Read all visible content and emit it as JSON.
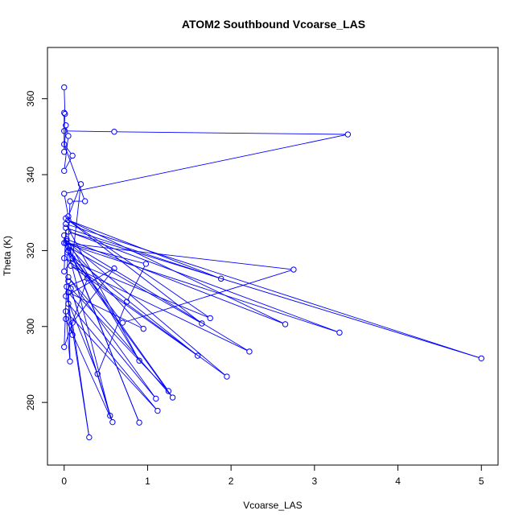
{
  "chart_data": {
    "type": "line",
    "title": "ATOM2 Southbound Vcoarse_LAS",
    "xlabel": "Vcoarse_LAS",
    "ylabel": "Theta (K)",
    "xlim": [
      -0.2,
      5.2
    ],
    "ylim": [
      263.5,
      373.5
    ],
    "xticks": [
      0,
      1,
      2,
      3,
      4,
      5
    ],
    "yticks": [
      280,
      300,
      320,
      340,
      360
    ],
    "grid": false,
    "series": [
      {
        "color": "#0000ff",
        "points": [
          [
            0.0,
            363.0
          ],
          [
            0.01,
            356.0
          ],
          [
            0.0,
            351.5
          ],
          [
            0.6,
            351.3
          ],
          [
            3.4,
            350.6
          ],
          [
            0.0,
            335.0
          ],
          [
            0.05,
            329.0
          ],
          [
            0.2,
            337.5
          ],
          [
            0.1,
            318.0
          ],
          [
            0.0,
            314.5
          ],
          [
            0.02,
            326.0
          ],
          [
            1.88,
            312.6
          ],
          [
            0.05,
            328.0
          ],
          [
            2.65,
            300.6
          ],
          [
            0.03,
            323.0
          ],
          [
            0.9,
            291.0
          ],
          [
            0.02,
            327.0
          ],
          [
            5.0,
            291.6
          ],
          [
            0.05,
            325.0
          ],
          [
            3.3,
            298.4
          ],
          [
            0.0,
            322.0
          ],
          [
            2.75,
            315.0
          ],
          [
            0.7,
            301.0
          ],
          [
            0.05,
            320.0
          ],
          [
            1.25,
            283.0
          ],
          [
            0.08,
            310.0
          ],
          [
            0.55,
            276.5
          ],
          [
            0.0,
            324.0
          ],
          [
            0.9,
            274.7
          ],
          [
            0.05,
            321.0
          ],
          [
            1.65,
            300.8
          ],
          [
            0.02,
            328.5
          ],
          [
            1.75,
            302.2
          ],
          [
            0.0,
            318.0
          ],
          [
            1.95,
            286.8
          ],
          [
            0.03,
            322.5
          ],
          [
            2.22,
            293.4
          ],
          [
            0.08,
            316.0
          ],
          [
            1.6,
            292.3
          ],
          [
            0.04,
            319.5
          ],
          [
            1.3,
            281.3
          ],
          [
            0.05,
            313.0
          ],
          [
            1.1,
            281.0
          ],
          [
            0.05,
            309.0
          ],
          [
            0.95,
            299.4
          ],
          [
            0.02,
            322.0
          ],
          [
            0.98,
            316.5
          ],
          [
            0.75,
            306.5
          ],
          [
            0.4,
            287.5
          ],
          [
            0.02,
            308.0
          ],
          [
            0.6,
            315.3
          ],
          [
            0.1,
            301.0
          ],
          [
            0.3,
            270.8
          ],
          [
            0.05,
            306.0
          ],
          [
            1.12,
            277.8
          ],
          [
            0.02,
            304.0
          ],
          [
            0.07,
            290.8
          ],
          [
            0.05,
            312.0
          ],
          [
            0.58,
            274.8
          ],
          [
            0.02,
            302.0
          ],
          [
            0.1,
            297.8
          ],
          [
            0.03,
            310.5
          ],
          [
            0.28,
            312.7
          ],
          [
            0.0,
            294.6
          ],
          [
            0.07,
            333.0
          ],
          [
            0.25,
            333.0
          ],
          [
            0.0,
            348.0
          ],
          [
            0.1,
            345.0
          ],
          [
            0.0,
            341.0
          ],
          [
            0.05,
            350.2
          ],
          [
            0.02,
            353.0
          ],
          [
            0.0,
            346.0
          ],
          [
            0.0,
            356.3
          ]
        ]
      }
    ]
  }
}
